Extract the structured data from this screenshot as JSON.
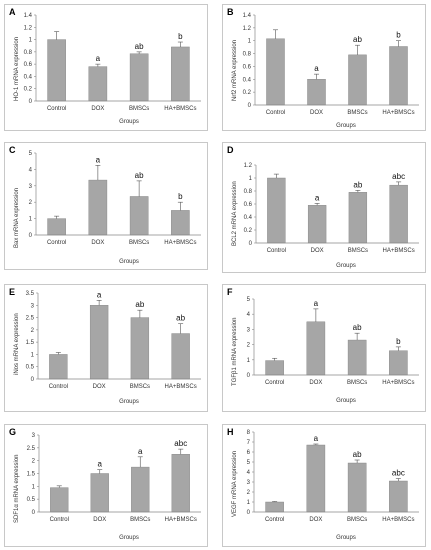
{
  "colors": {
    "bar": "#a6a6a6",
    "bar_edge": "#7f7f7f",
    "axis": "#888888",
    "text": "#333333"
  },
  "chart_data": [
    {
      "panel": "A",
      "type": "bar",
      "categories": [
        "Control",
        "DOX",
        "BMSCs",
        "HA+BMSCs"
      ],
      "values": [
        1.0,
        0.56,
        0.77,
        0.88
      ],
      "errors": [
        0.13,
        0.04,
        0.03,
        0.08
      ],
      "annotations": [
        "",
        "a",
        "ab",
        "b"
      ],
      "ylim": [
        0,
        1.4
      ],
      "yticks": [
        "0",
        "0.2",
        "0.4",
        "0.6",
        "0.8",
        "1",
        "1.2",
        "1.4"
      ],
      "ylabel": "HO-1 mRNA expression",
      "xlabel": "Groups",
      "grid": false
    },
    {
      "panel": "B",
      "type": "bar",
      "categories": [
        "Control",
        "DOX",
        "BMSCs",
        "HA+BMSCs"
      ],
      "values": [
        1.03,
        0.4,
        0.78,
        0.91
      ],
      "errors": [
        0.14,
        0.08,
        0.15,
        0.09
      ],
      "annotations": [
        "",
        "a",
        "ab",
        "b"
      ],
      "ylim": [
        0,
        1.4
      ],
      "yticks": [
        "0",
        "0.2",
        "0.4",
        "0.6",
        "0.8",
        "1",
        "1.2",
        "1.4"
      ],
      "ylabel": "Nrf2 mRNA expression",
      "xlabel": "Groups",
      "grid": false
    },
    {
      "panel": "C",
      "type": "bar",
      "categories": [
        "Control",
        "DOX",
        "BMSCs",
        "HA+BMSCs"
      ],
      "values": [
        1.0,
        3.35,
        2.35,
        1.5
      ],
      "errors": [
        0.15,
        0.9,
        0.95,
        0.5
      ],
      "annotations": [
        "",
        "a",
        "ab",
        "b"
      ],
      "ylim": [
        0,
        5
      ],
      "yticks": [
        "0",
        "1",
        "2",
        "3",
        "4",
        "5"
      ],
      "ylabel": "Bax mRNA expression",
      "xlabel": "Groups",
      "grid": false
    },
    {
      "panel": "D",
      "type": "bar",
      "categories": [
        "Control",
        "DOX",
        "BMSCs",
        "HA+BMSCs"
      ],
      "values": [
        1.0,
        0.58,
        0.78,
        0.89
      ],
      "errors": [
        0.06,
        0.03,
        0.03,
        0.05
      ],
      "annotations": [
        "",
        "a",
        "ab",
        "abc"
      ],
      "ylim": [
        0,
        1.2
      ],
      "yticks": [
        "0",
        "0.2",
        "0.4",
        "0.6",
        "0.8",
        "1",
        "1.2"
      ],
      "ylabel": "BCL2 mRNA expression",
      "xlabel": "Groups",
      "grid": false
    },
    {
      "panel": "E",
      "type": "bar",
      "categories": [
        "Control",
        "DOX",
        "BMSCs",
        "HA+BMSCs"
      ],
      "values": [
        1.0,
        3.0,
        2.5,
        1.85
      ],
      "errors": [
        0.08,
        0.2,
        0.3,
        0.4
      ],
      "annotations": [
        "",
        "a",
        "ab",
        "ab"
      ],
      "ylim": [
        0,
        3.5
      ],
      "yticks": [
        "0",
        "0.5",
        "1",
        "1.5",
        "2",
        "2.5",
        "3",
        "3.5"
      ],
      "ylabel": "iNos mRNA expression",
      "xlabel": "Groups",
      "grid": false
    },
    {
      "panel": "F",
      "type": "bar",
      "categories": [
        "Control",
        "DOX",
        "BMSCs",
        "HA+BMSCs"
      ],
      "values": [
        0.95,
        3.5,
        2.3,
        1.6
      ],
      "errors": [
        0.15,
        0.85,
        0.45,
        0.25
      ],
      "annotations": [
        "",
        "a",
        "ab",
        "b"
      ],
      "ylim": [
        0,
        5
      ],
      "yticks": [
        "0",
        "1",
        "2",
        "3",
        "4",
        "5"
      ],
      "ylabel": "TGFβ1 mRNA expression",
      "xlabel": "Groups",
      "grid": false
    },
    {
      "panel": "G",
      "type": "bar",
      "categories": [
        "Control",
        "DOX",
        "BMSCs",
        "HA+BMSCs"
      ],
      "values": [
        0.95,
        1.5,
        1.75,
        2.25
      ],
      "errors": [
        0.07,
        0.15,
        0.4,
        0.2
      ],
      "annotations": [
        "",
        "a",
        "a",
        "abc"
      ],
      "ylim": [
        0,
        3
      ],
      "yticks": [
        "0",
        "0.5",
        "1",
        "1.5",
        "2",
        "2.5",
        "3"
      ],
      "ylabel": "SDF1α mRNA expression",
      "xlabel": "Groups",
      "grid": false
    },
    {
      "panel": "H",
      "type": "bar",
      "categories": [
        "Control",
        "DOX",
        "BMSCs",
        "HA+BMSCs"
      ],
      "values": [
        1.0,
        6.7,
        4.9,
        3.1
      ],
      "errors": [
        0.05,
        0.1,
        0.3,
        0.25
      ],
      "annotations": [
        "",
        "a",
        "ab",
        "abc"
      ],
      "ylim": [
        0,
        8
      ],
      "yticks": [
        "0",
        "1",
        "2",
        "3",
        "4",
        "5",
        "6",
        "7",
        "8"
      ],
      "ylabel": "VEGF mRNA expression",
      "xlabel": "Groups",
      "grid": false
    }
  ]
}
